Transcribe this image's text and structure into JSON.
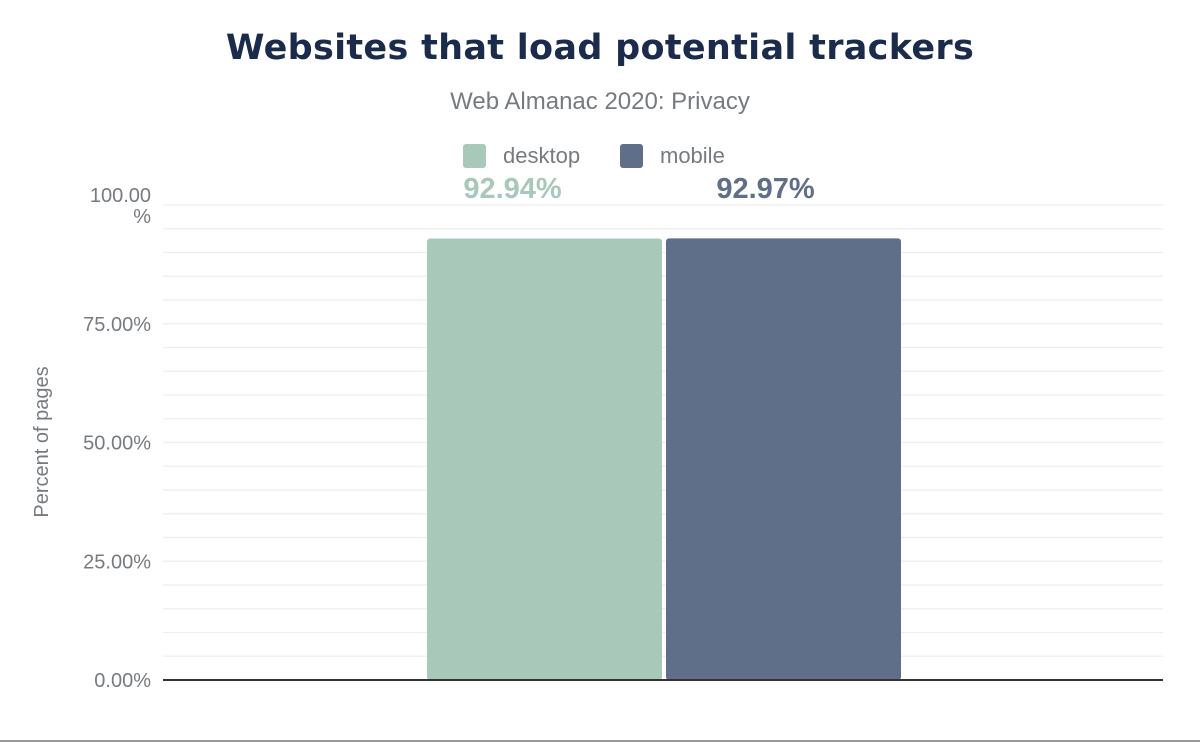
{
  "chart_data": {
    "type": "bar",
    "title": "Websites that load potential trackers",
    "subtitle": "Web Almanac 2020: Privacy",
    "xlabel": "",
    "ylabel": "Percent of pages",
    "ylim": [
      0,
      100
    ],
    "yticks": [
      {
        "value": 0,
        "label": "0.00%"
      },
      {
        "value": 25,
        "label": "25.00%"
      },
      {
        "value": 50,
        "label": "50.00%"
      },
      {
        "value": 75,
        "label": "75.00%"
      },
      {
        "value": 100,
        "label": "100.00 %"
      }
    ],
    "grid": true,
    "legend": "top",
    "categories": [
      ""
    ],
    "series": [
      {
        "name": "desktop",
        "values": [
          92.94
        ],
        "label": "92.94%",
        "color": "#a8c9b9"
      },
      {
        "name": "mobile",
        "values": [
          92.97
        ],
        "label": "92.97%",
        "color": "#5f6f8a"
      }
    ]
  }
}
